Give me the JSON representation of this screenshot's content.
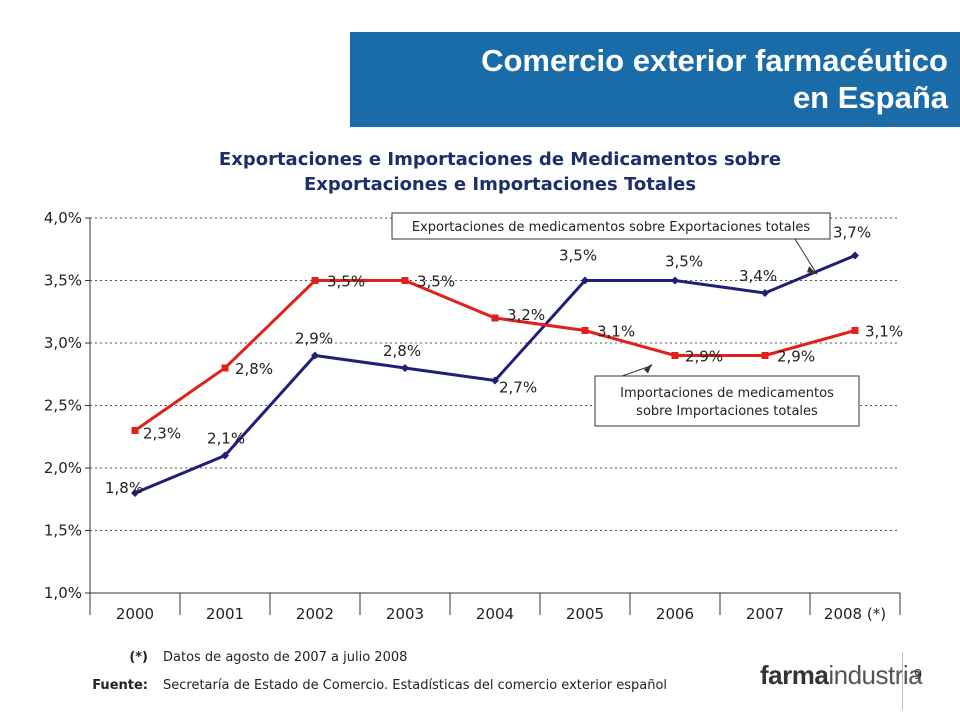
{
  "header": {
    "title_line1": "Comercio exterior farmacéutico",
    "title_line2": "en España"
  },
  "chart_data": {
    "type": "line",
    "title_line1": "Exportaciones e Importaciones de Medicamentos sobre",
    "title_line2": "Exportaciones e Importaciones Totales",
    "categories": [
      "2000",
      "2001",
      "2002",
      "2003",
      "2004",
      "2005",
      "2006",
      "2007",
      "2008 (*)"
    ],
    "y_ticks": [
      "1,0%",
      "1,5%",
      "2,0%",
      "2,5%",
      "3,0%",
      "3,5%",
      "4,0%"
    ],
    "ylim": [
      1.0,
      4.0
    ],
    "grid": true,
    "series": [
      {
        "name": "Exportaciones de medicamentos sobre Exportaciones totales",
        "color": "#1f1f7a",
        "marker": "diamond",
        "values": [
          1.8,
          2.1,
          2.9,
          2.8,
          2.7,
          3.5,
          3.5,
          3.4,
          3.7
        ],
        "labels": [
          "1,8%",
          "2,1%",
          "2,9%",
          "2,8%",
          "2,7%",
          "3,5%",
          "3,5%",
          "3,4%",
          "3,7%"
        ]
      },
      {
        "name": "Importaciones de medicamentos sobre Importaciones totales",
        "color": "#e0201a",
        "marker": "square",
        "values": [
          2.3,
          2.8,
          3.5,
          3.5,
          3.2,
          3.1,
          2.9,
          2.9,
          3.1
        ],
        "labels": [
          "2,3%",
          "2,8%",
          "3,5%",
          "3,5%",
          "3,2%",
          "3,1%",
          "2,9%",
          "2,9%",
          "3,1%"
        ]
      }
    ],
    "callouts": [
      {
        "text_lines": [
          "Exportaciones de medicamentos sobre Exportaciones totales"
        ]
      },
      {
        "text_lines": [
          "Importaciones de medicamentos",
          "sobre Importaciones totales"
        ]
      }
    ]
  },
  "footer": {
    "note_label": "(*)",
    "note_text": "Datos de agosto de 2007 a julio 2008",
    "source_label": "Fuente:",
    "source_text": "Secretaría de Estado de Comercio. Estadísticas del comercio exterior español",
    "logo_part1": "farma",
    "logo_part2": "industria",
    "page_number": "9"
  }
}
